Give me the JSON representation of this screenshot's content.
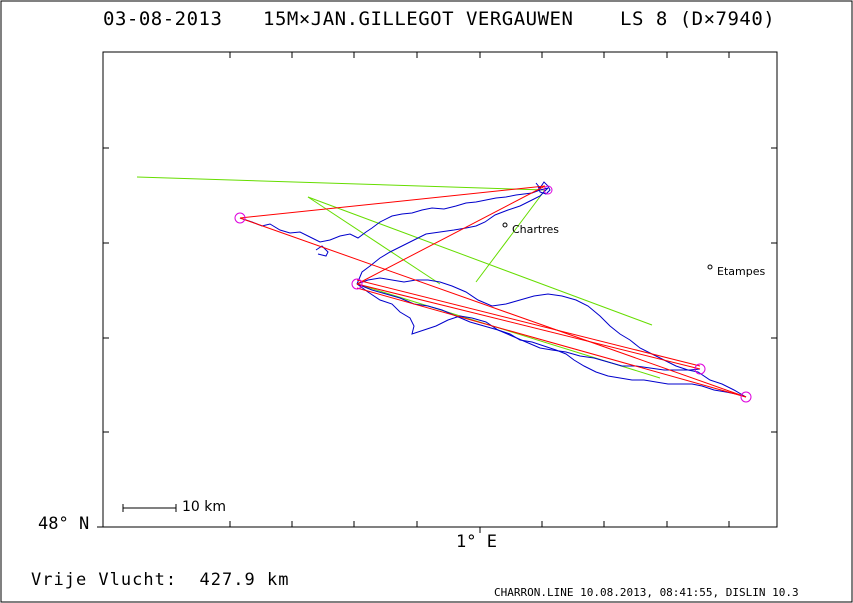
{
  "header": {
    "date": "03-08-2013",
    "pilot": "15M×JAN.GILLEGOT VERGAUWEN",
    "glider": "LS 8 (D×7940)"
  },
  "axes": {
    "y_label": "48° N",
    "x_label": "1° E"
  },
  "scale_bar": {
    "label": "10 km"
  },
  "cities": [
    {
      "name": "Chartres"
    },
    {
      "name": "Etampes"
    }
  ],
  "distance": {
    "label": "Vrije Vlucht:",
    "value": "427.9 km"
  },
  "footer": "CHARRON.LINE 10.08.2013, 08:41:55, DISLIN 10.3",
  "colors": {
    "track": "#0000cc",
    "task": "#ff0000",
    "optimized": "#66dd00",
    "turnpoint": "#dd00dd",
    "frame": "#000000"
  }
}
